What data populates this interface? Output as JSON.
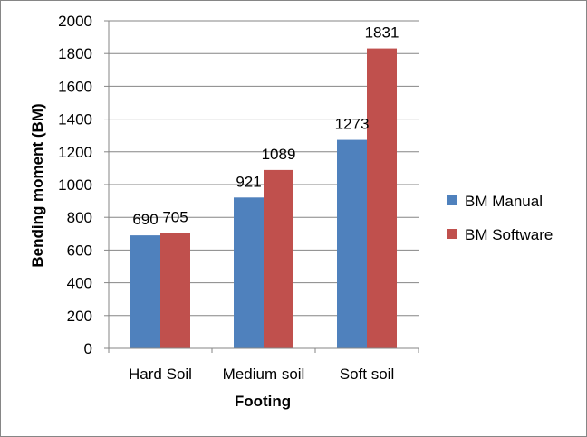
{
  "chart_data": {
    "type": "bar",
    "categories": [
      "Hard Soil",
      "Medium soil",
      "Soft soil"
    ],
    "series": [
      {
        "name": "BM Manual",
        "values": [
          690,
          921,
          1273
        ],
        "color": "#4f81bd"
      },
      {
        "name": "BM Software",
        "values": [
          705,
          1089,
          1831
        ],
        "color": "#c0504d"
      }
    ],
    "xlabel": "Footing",
    "ylabel": "Bending moment (BM)",
    "ylim": [
      0,
      2000
    ],
    "yticks": [
      0,
      200,
      400,
      600,
      800,
      1000,
      1200,
      1400,
      1600,
      1800,
      2000
    ],
    "grid": true,
    "data_labels": true,
    "legend_position": "right"
  }
}
